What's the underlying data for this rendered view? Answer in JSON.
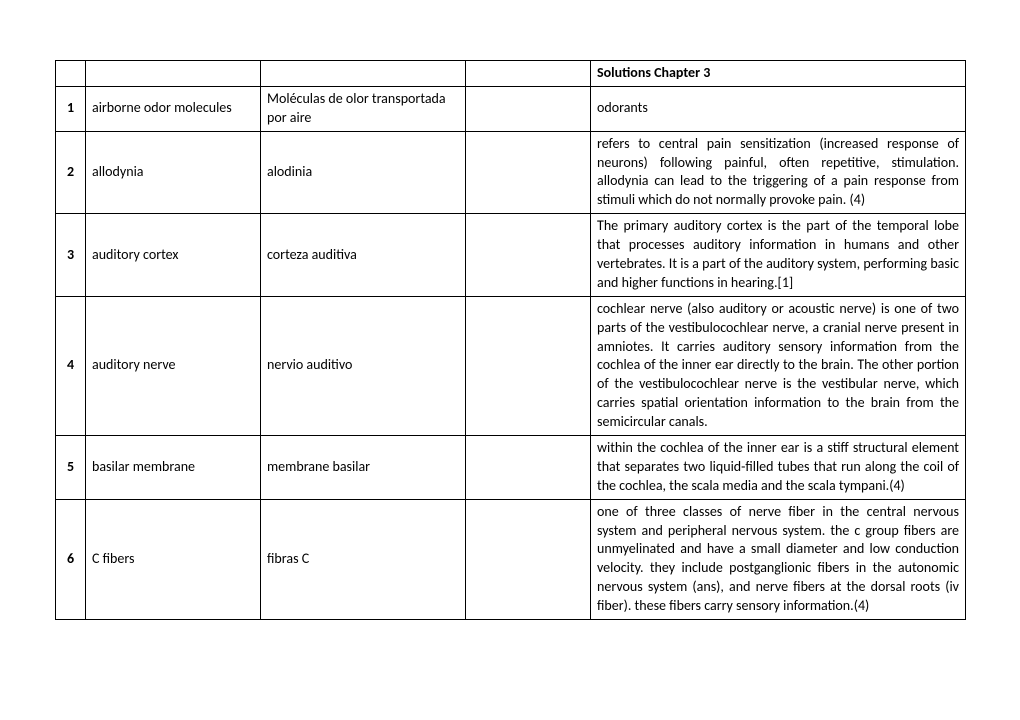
{
  "header": {
    "col5": "Solutions Chapter 3"
  },
  "rows": [
    {
      "num": "1",
      "term_en": "airborne odor molecules",
      "term_es": "Moléculas de olor transportada por aire",
      "col4": "",
      "definition": "odorants",
      "justify": false
    },
    {
      "num": "2",
      "term_en": "allodynia",
      "term_es": "alodinia",
      "col4": "",
      "definition": "refers to central pain sensitization (increased response of neurons) following painful, often repetitive, stimulation. allodynia can lead to the triggering of a pain response from stimuli which do not normally provoke pain. (4)",
      "justify": true
    },
    {
      "num": "3",
      "term_en": "auditory cortex",
      "term_es": "corteza auditiva",
      "col4": "",
      "definition": "The primary auditory cortex is the part of the temporal lobe that processes auditory information in humans and other vertebrates. It is a part of the auditory system, performing basic and higher functions in hearing.[1]",
      "justify": true
    },
    {
      "num": "4",
      "term_en": "auditory nerve",
      "term_es": "nervio auditivo",
      "col4": "",
      "definition": "cochlear nerve (also auditory or acoustic nerve) is one of two parts of the vestibulocochlear nerve, a cranial nerve present in amniotes. It carries auditory sensory information from the cochlea of the inner ear directly to the brain. The other portion of the vestibulocochlear nerve is the vestibular nerve, which carries spatial orientation information to the brain from the semicircular canals.",
      "justify": true
    },
    {
      "num": "5",
      "term_en": "basilar membrane",
      "term_es": "membrane basilar",
      "col4": "",
      "definition": "within the cochlea of the inner ear is a stiff structural element that separates two liquid-filled tubes that run along the coil of the cochlea, the scala media and the scala tympani.(4)",
      "justify": true
    },
    {
      "num": "6",
      "term_en": "C fibers",
      "term_es": "fibras C",
      "col4": "",
      "definition": "one of three classes of nerve fiber in the central nervous system and peripheral nervous system. the c group fibers are unmyelinated and have a small diameter and low conduction velocity. they include postganglionic fibers in the autonomic nervous system (ans), and nerve fibers at the dorsal roots (iv fiber). these fibers carry sensory information.(4)",
      "justify": true
    }
  ]
}
